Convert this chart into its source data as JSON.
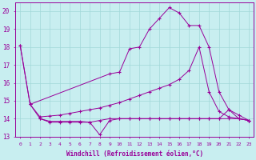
{
  "background_color": "#c8eef0",
  "grid_color": "#a0d8d8",
  "line_color": "#990099",
  "xlabel": "Windchill (Refroidissement éolien,°C)",
  "xlim": [
    -0.5,
    23.5
  ],
  "ylim": [
    13,
    20.5
  ],
  "yticks": [
    13,
    14,
    15,
    16,
    17,
    18,
    19,
    20
  ],
  "xticks": [
    0,
    1,
    2,
    3,
    4,
    5,
    6,
    7,
    8,
    9,
    10,
    11,
    12,
    13,
    14,
    15,
    16,
    17,
    18,
    19,
    20,
    21,
    22,
    23
  ],
  "series": [
    {
      "x": [
        0,
        1,
        2,
        3,
        4,
        5,
        6,
        7,
        8,
        9,
        10,
        11,
        12,
        13,
        14,
        15,
        16,
        17,
        18,
        19,
        20,
        21,
        22,
        23
      ],
      "y": [
        18.1,
        14.8,
        14.0,
        13.8,
        13.8,
        13.8,
        13.8,
        13.8,
        13.9,
        14.0,
        14.0,
        14.0,
        14.0,
        14.0,
        14.0,
        14.0,
        14.0,
        14.0,
        14.0,
        14.0,
        14.0,
        14.0,
        14.0,
        13.9
      ]
    },
    {
      "x": [
        2,
        3,
        4,
        5,
        6,
        7,
        8,
        9,
        10,
        11,
        12,
        13,
        14,
        15,
        16,
        17,
        18,
        19,
        20,
        21,
        22,
        23
      ],
      "y": [
        14.0,
        13.85,
        13.85,
        13.85,
        13.85,
        13.8,
        13.1,
        13.9,
        14.0,
        14.0,
        14.0,
        14.0,
        14.0,
        14.0,
        14.0,
        14.0,
        14.0,
        14.0,
        14.0,
        14.5,
        14.0,
        13.9
      ]
    },
    {
      "x": [
        1,
        2,
        3,
        4,
        5,
        6,
        7,
        8,
        9,
        10,
        11,
        12,
        13,
        14,
        15,
        16,
        17,
        18,
        19,
        20,
        21,
        22,
        23
      ],
      "y": [
        14.8,
        14.1,
        14.15,
        14.2,
        14.3,
        14.4,
        14.5,
        14.6,
        14.75,
        14.9,
        15.1,
        15.3,
        15.5,
        15.7,
        15.9,
        16.2,
        16.7,
        18.0,
        15.5,
        14.4,
        14.1,
        14.0,
        13.9
      ]
    },
    {
      "x": [
        0,
        1,
        9,
        10,
        11,
        12,
        13,
        14,
        15,
        16,
        17,
        18,
        19,
        20,
        21,
        22,
        23
      ],
      "y": [
        18.1,
        14.8,
        16.5,
        16.6,
        17.9,
        18.0,
        19.0,
        19.6,
        20.2,
        19.9,
        19.2,
        19.2,
        18.0,
        15.5,
        14.5,
        14.2,
        13.9
      ]
    }
  ]
}
